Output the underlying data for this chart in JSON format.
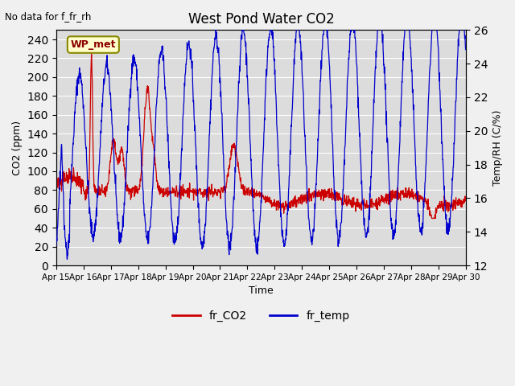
{
  "title": "West Pond Water CO2",
  "top_left_text": "No data for f_fr_rh",
  "xlabel": "Time",
  "ylabel_left": "CO2 (ppm)",
  "ylabel_right": "Temp/RH (C/%)",
  "legend_label_red": "fr_CO2",
  "legend_label_blue": "fr_temp",
  "box_label": "WP_met",
  "ylim_left": [
    0,
    250
  ],
  "ylim_right": [
    12,
    26
  ],
  "red_color": "#cc0000",
  "blue_color": "#0000cc",
  "fig_bg": "#f0f0f0",
  "plot_bg": "#dcdcdc",
  "grid_color": "#ffffff"
}
